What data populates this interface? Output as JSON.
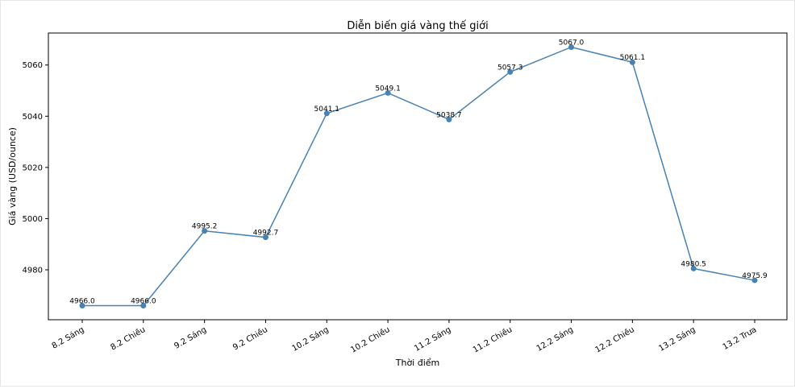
{
  "chart_data": {
    "type": "line",
    "title": "Diễn biến giá vàng thế giới",
    "xlabel": "Thời điểm",
    "ylabel": "Giá vàng (USD/ounce)",
    "categories": [
      "8.2 Sáng",
      "8.2 Chiều",
      "9.2 Sáng",
      "9.2 Chiều",
      "10.2 Sáng",
      "10.2 Chiều",
      "11.2 Sáng",
      "11.2 Chiều",
      "12.2 Sáng",
      "12.2 Chiều",
      "13.2 Sáng",
      "13.2 Trưa"
    ],
    "values": [
      4966.0,
      4966.0,
      4995.2,
      4992.7,
      5041.1,
      5049.1,
      5038.7,
      5057.3,
      5067.0,
      5061.1,
      4980.5,
      4975.9
    ],
    "data_labels": [
      "4966.0",
      "4966.0",
      "4995.2",
      "4992.7",
      "5041.1",
      "5049.1",
      "5038.7",
      "5057.3",
      "5067.0",
      "5061.1",
      "4980.5",
      "4975.9"
    ],
    "ylim": [
      4960.5,
      5072.5
    ],
    "yticks": [
      4980,
      5000,
      5020,
      5040,
      5060
    ],
    "ytick_labels": [
      "4980",
      "5000",
      "5020",
      "5040",
      "5060"
    ],
    "grid": false,
    "legend": "none",
    "line_color": "#4682b4",
    "marker_color": "#4682b4"
  }
}
